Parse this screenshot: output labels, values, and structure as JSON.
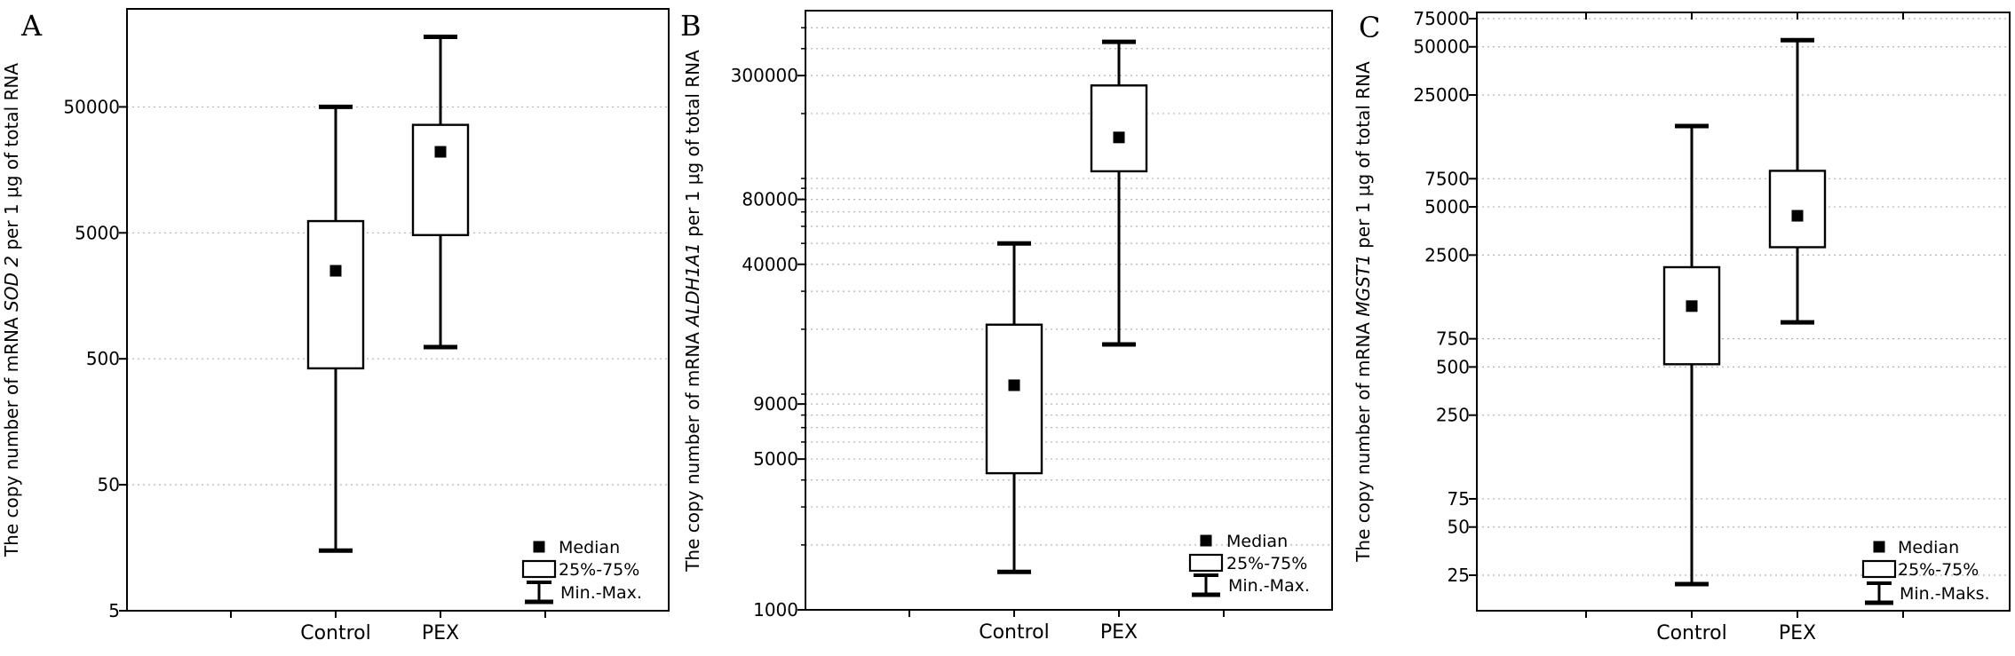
{
  "figure_background": "#ffffff",
  "line_color": "#000000",
  "gridline_color": "#b3b3b3",
  "chart_data": [
    {
      "type": "boxplot",
      "panel_label": "A",
      "ylabel_prefix": "The copy number of mRNA ",
      "ylabel_gene": "SOD 2",
      "ylabel_suffix": " per 1 μg of total RNA",
      "yscale": "log",
      "ylim": [
        5,
        300000
      ],
      "yticks": [
        50000,
        5000,
        500,
        50,
        5
      ],
      "ytick_labels": [
        "50000",
        "5000",
        "500",
        "50",
        "5"
      ],
      "minor_ticks": [],
      "gridline_values": [
        50000,
        5000,
        500,
        50
      ],
      "categories": [
        "Control",
        "PEX"
      ],
      "stats": [
        {
          "category": "Control",
          "min": 15,
          "q1": 420,
          "median": 2500,
          "q3": 6200,
          "max": 50000
        },
        {
          "category": "PEX",
          "min": 620,
          "q1": 4800,
          "median": 22000,
          "q3": 36000,
          "max": 180000
        }
      ],
      "legend": {
        "median_label": "Median",
        "box_label": "25%-75%",
        "whisker_label": "Min.-Max."
      }
    },
    {
      "type": "boxplot",
      "panel_label": "B",
      "ylabel_prefix": "The copy number of mRNA ",
      "ylabel_gene": "ALDH1A1",
      "ylabel_suffix": " per 1 μg of total RNA",
      "yscale": "log",
      "ylim": [
        1000,
        600000
      ],
      "yticks": [
        300000,
        80000,
        40000,
        9000,
        5000,
        1000
      ],
      "ytick_labels": [
        "300000",
        "80000",
        "40000",
        "9000",
        "5000",
        "1000"
      ],
      "minor_ticks": [
        2000,
        3000,
        4000,
        6000,
        7000,
        8000,
        10000,
        20000,
        30000,
        50000,
        60000,
        70000,
        90000,
        100000,
        200000,
        400000,
        500000
      ],
      "gridline_values": [
        300000,
        80000,
        40000,
        9000,
        5000,
        2000,
        3000,
        4000,
        6000,
        7000,
        8000,
        10000,
        20000,
        30000,
        50000,
        60000,
        70000,
        90000,
        100000,
        200000,
        400000,
        500000
      ],
      "categories": [
        "Control",
        "PEX"
      ],
      "stats": [
        {
          "category": "Control",
          "min": 1500,
          "q1": 4300,
          "median": 11000,
          "q3": 21000,
          "max": 50000
        },
        {
          "category": "PEX",
          "min": 17000,
          "q1": 108000,
          "median": 155000,
          "q3": 270000,
          "max": 430000
        }
      ],
      "legend": {
        "median_label": "Median",
        "box_label": "25%-75%",
        "whisker_label": "Min.-Max."
      }
    },
    {
      "type": "boxplot",
      "panel_label": "C",
      "ylabel_prefix": "The copy number of mRNA ",
      "ylabel_gene": "MGST1",
      "ylabel_suffix": " per 1 μg of total RNA",
      "yscale": "log",
      "ylim": [
        15,
        82000
      ],
      "yticks": [
        75000,
        50000,
        25000,
        7500,
        5000,
        2500,
        750,
        500,
        250,
        75,
        50,
        25
      ],
      "ytick_labels": [
        "75000",
        "50000",
        "25000",
        "7500",
        "5000",
        "2500",
        "750",
        "500",
        "250",
        "75",
        "50",
        "25"
      ],
      "minor_ticks": [],
      "gridline_values": [
        75000,
        50000,
        25000,
        7500,
        5000,
        2500,
        750,
        500,
        250,
        75,
        50,
        25
      ],
      "categories": [
        "Control",
        "PEX"
      ],
      "stats": [
        {
          "category": "Control",
          "min": 22,
          "q1": 520,
          "median": 1200,
          "q3": 2100,
          "max": 16000
        },
        {
          "category": "PEX",
          "min": 950,
          "q1": 2800,
          "median": 4400,
          "q3": 8400,
          "max": 55000
        }
      ],
      "legend": {
        "median_label": "Median",
        "box_label": "25%-75%",
        "whisker_label": "Min.-Maks."
      }
    }
  ]
}
